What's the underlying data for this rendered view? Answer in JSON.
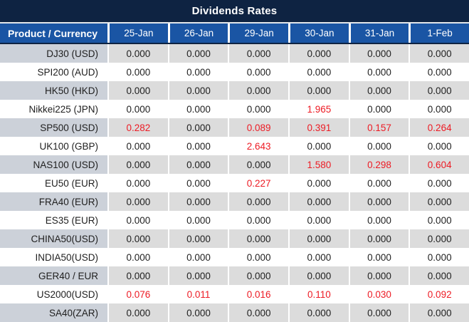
{
  "colors": {
    "navy": "#0e2342",
    "header_blue": "#1a55a4",
    "row_alt_product": "#ccd1d9",
    "row_alt_data": "#dcdcdc",
    "red_value": "#ed1b24",
    "text": "#1f1f1f"
  },
  "chart_data": {
    "type": "table",
    "title": "Dividends Rates",
    "columns": [
      "Product / Currency",
      "25-Jan",
      "26-Jan",
      "29-Jan",
      "30-Jan",
      "31-Jan",
      "1-Feb"
    ],
    "rows": [
      {
        "product": "DJ30 (USD)",
        "values": [
          "0.000",
          "0.000",
          "0.000",
          "0.000",
          "0.000",
          "0.000"
        ],
        "red": [
          false,
          false,
          false,
          false,
          false,
          false
        ]
      },
      {
        "product": "SPI200 (AUD)",
        "values": [
          "0.000",
          "0.000",
          "0.000",
          "0.000",
          "0.000",
          "0.000"
        ],
        "red": [
          false,
          false,
          false,
          false,
          false,
          false
        ]
      },
      {
        "product": "HK50 (HKD)",
        "values": [
          "0.000",
          "0.000",
          "0.000",
          "0.000",
          "0.000",
          "0.000"
        ],
        "red": [
          false,
          false,
          false,
          false,
          false,
          false
        ]
      },
      {
        "product": "Nikkei225 (JPN)",
        "values": [
          "0.000",
          "0.000",
          "0.000",
          "1.965",
          "0.000",
          "0.000"
        ],
        "red": [
          false,
          false,
          false,
          true,
          false,
          false
        ]
      },
      {
        "product": "SP500 (USD)",
        "values": [
          "0.282",
          "0.000",
          "0.089",
          "0.391",
          "0.157",
          "0.264"
        ],
        "red": [
          true,
          false,
          true,
          true,
          true,
          true
        ]
      },
      {
        "product": "UK100 (GBP)",
        "values": [
          "0.000",
          "0.000",
          "2.643",
          "0.000",
          "0.000",
          "0.000"
        ],
        "red": [
          false,
          false,
          true,
          false,
          false,
          false
        ]
      },
      {
        "product": "NAS100 (USD)",
        "values": [
          "0.000",
          "0.000",
          "0.000",
          "1.580",
          "0.298",
          "0.604"
        ],
        "red": [
          false,
          false,
          false,
          true,
          true,
          true
        ]
      },
      {
        "product": "EU50 (EUR)",
        "values": [
          "0.000",
          "0.000",
          "0.227",
          "0.000",
          "0.000",
          "0.000"
        ],
        "red": [
          false,
          false,
          true,
          false,
          false,
          false
        ]
      },
      {
        "product": "FRA40 (EUR)",
        "values": [
          "0.000",
          "0.000",
          "0.000",
          "0.000",
          "0.000",
          "0.000"
        ],
        "red": [
          false,
          false,
          false,
          false,
          false,
          false
        ]
      },
      {
        "product": "ES35 (EUR)",
        "values": [
          "0.000",
          "0.000",
          "0.000",
          "0.000",
          "0.000",
          "0.000"
        ],
        "red": [
          false,
          false,
          false,
          false,
          false,
          false
        ]
      },
      {
        "product": "CHINA50(USD)",
        "values": [
          "0.000",
          "0.000",
          "0.000",
          "0.000",
          "0.000",
          "0.000"
        ],
        "red": [
          false,
          false,
          false,
          false,
          false,
          false
        ]
      },
      {
        "product": "INDIA50(USD)",
        "values": [
          "0.000",
          "0.000",
          "0.000",
          "0.000",
          "0.000",
          "0.000"
        ],
        "red": [
          false,
          false,
          false,
          false,
          false,
          false
        ]
      },
      {
        "product": "GER40 / EUR",
        "values": [
          "0.000",
          "0.000",
          "0.000",
          "0.000",
          "0.000",
          "0.000"
        ],
        "red": [
          false,
          false,
          false,
          false,
          false,
          false
        ]
      },
      {
        "product": "US2000(USD)",
        "values": [
          "0.076",
          "0.011",
          "0.016",
          "0.110",
          "0.030",
          "0.092"
        ],
        "red": [
          true,
          true,
          true,
          true,
          true,
          true
        ]
      },
      {
        "product": "SA40(ZAR)",
        "values": [
          "0.000",
          "0.000",
          "0.000",
          "0.000",
          "0.000",
          "0.000"
        ],
        "red": [
          false,
          false,
          false,
          false,
          false,
          false
        ]
      }
    ]
  }
}
